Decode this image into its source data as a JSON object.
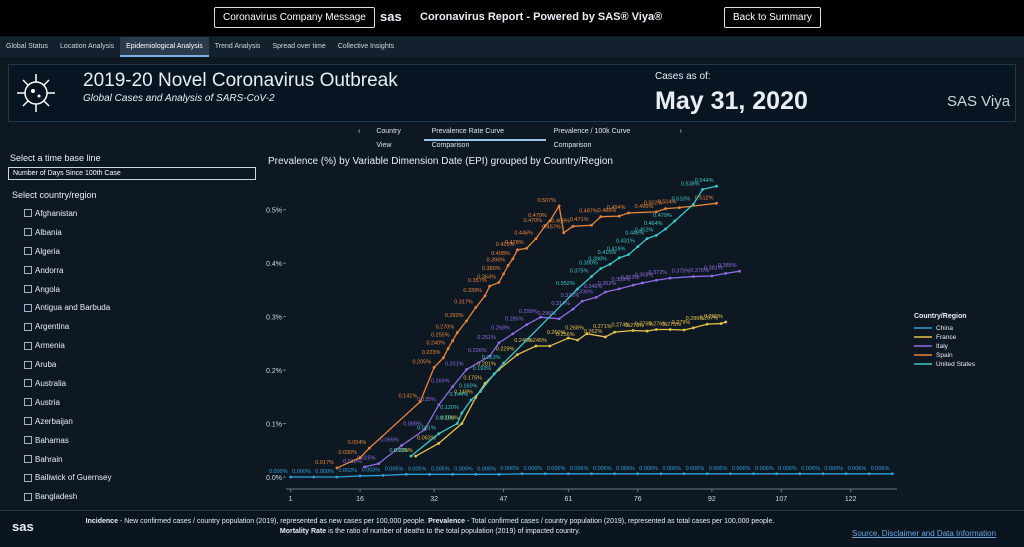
{
  "top_bar": {
    "left_button": "Coronavirus Company Message",
    "logo": "sas",
    "title": "Coronavirus Report - Powered by SAS® Viya®",
    "right_button": "Back to Summary"
  },
  "tabs": [
    "Global Status",
    "Location Analysis",
    "Epidemiological Analysis",
    "Trend Analysis",
    "Spread over time",
    "Collective Insights"
  ],
  "active_tab": 2,
  "header": {
    "title": "2019-20 Novel Coronavirus Outbreak",
    "subtitle": "Global Cases and Analysis of SARS-CoV-2",
    "cases_label": "Cases as of:",
    "date": "May 31, 2020",
    "brand": "SAS Viya"
  },
  "subtabs": [
    "Country View",
    "Prevalence Rate Curve Comparison",
    "Prevalence / 100k Curve Comparison"
  ],
  "active_subtab": 1,
  "filters": {
    "time_label": "Select a time base line",
    "time_value": "Number of Days Since 100th Case",
    "country_label": "Select country/region",
    "countries": [
      "Afghanistan",
      "Albania",
      "Algeria",
      "Andorra",
      "Angola",
      "Antigua and Barbuda",
      "Argentina",
      "Armenia",
      "Aruba",
      "Australia",
      "Austria",
      "Azerbaijan",
      "Bahamas",
      "Bahrain",
      "Bailiwick of Guernsey",
      "Bangladesh"
    ]
  },
  "chart_data": {
    "type": "line",
    "title": "Prevalence  (%) by Variable Dimension Date (EPI) grouped by Country/Region",
    "legend_title": "Country/Region",
    "legend_position": "right",
    "xlim": [
      0,
      132
    ],
    "xticks": [
      1,
      16,
      32,
      47,
      61,
      76,
      92,
      107,
      122
    ],
    "ylim": [
      0,
      0.55
    ],
    "yticks": [
      {
        "value": 0,
        "label": "0.0%"
      },
      {
        "value": 0.1,
        "label": "0.1%"
      },
      {
        "value": 0.2,
        "label": "0.2%"
      },
      {
        "value": 0.3,
        "label": "0.3%"
      },
      {
        "value": 0.4,
        "label": "0.4%"
      },
      {
        "value": 0.5,
        "label": "0.5%"
      }
    ],
    "series": [
      {
        "name": "China",
        "color": "#2f9fdc",
        "x": [
          1,
          6,
          11,
          16,
          21,
          26,
          31,
          36,
          41,
          46,
          51,
          56,
          61,
          66,
          71,
          76,
          81,
          86,
          91,
          96,
          101,
          106,
          111,
          116,
          121,
          126,
          131
        ],
        "values": [
          0,
          0,
          0,
          0.002,
          0.003,
          0.005,
          0.005,
          0.005,
          0.005,
          0.005,
          0.006,
          0.006,
          0.006,
          0.006,
          0.006,
          0.006,
          0.006,
          0.006,
          0.006,
          0.006,
          0.006,
          0.006,
          0.006,
          0.006,
          0.006,
          0.006,
          0.006
        ],
        "value_labels": [
          "0.000%",
          "0.000%",
          "0.000%",
          "0.002%",
          "0.003%",
          "0.005%",
          "0.005%",
          "0.005%",
          "0.005%",
          "0.005%",
          "0.006%",
          "0.006%",
          "0.006%",
          "0.006%",
          "0.006%",
          "0.006%",
          "0.006%",
          "0.006%",
          "0.006%",
          "0.006%",
          "0.006%",
          "0.006%",
          "0.006%",
          "0.006%",
          "0.006%",
          "0.006%",
          "0.006%"
        ]
      },
      {
        "name": "France",
        "color": "#e6c24a",
        "x": [
          28,
          33,
          38,
          41,
          43,
          46,
          50,
          54,
          57,
          61,
          63,
          65,
          69,
          71,
          75,
          78,
          80,
          83,
          86,
          88,
          91,
          94,
          95
        ],
        "values": [
          0.039,
          0.063,
          0.1,
          0.149,
          0.175,
          0.201,
          0.229,
          0.245,
          0.245,
          0.26,
          0.256,
          0.268,
          0.262,
          0.271,
          0.274,
          0.273,
          0.276,
          0.276,
          0.275,
          0.279,
          0.286,
          0.287,
          0.29
        ],
        "value_labels": [
          "0.039%",
          "0.063%",
          "0.100%",
          "0.149%",
          "0.175%",
          "0.201%",
          "0.229%",
          "0.245%",
          "0.245%",
          "0.260%",
          "0.256%",
          "0.268%",
          "0.262%",
          "0.271%",
          "0.274%",
          "0.273%",
          "0.276%",
          "0.276%",
          "0.275%",
          "0.279%",
          "0.286%",
          "0.287%",
          "0.290%"
        ]
      },
      {
        "name": "Italy",
        "color": "#8f6ce2",
        "x": [
          17,
          20,
          25,
          30,
          33,
          36,
          39,
          44,
          46,
          49,
          52,
          55,
          59,
          62,
          64,
          67,
          69,
          72,
          75,
          77,
          80,
          83,
          88,
          92,
          95,
          98
        ],
        "values": [
          0.019,
          0.025,
          0.059,
          0.089,
          0.135,
          0.169,
          0.201,
          0.226,
          0.251,
          0.268,
          0.285,
          0.299,
          0.296,
          0.314,
          0.329,
          0.336,
          0.346,
          0.352,
          0.359,
          0.363,
          0.368,
          0.372,
          0.375,
          0.376,
          0.381,
          0.385
        ],
        "value_labels": [
          "0.019%",
          "0.025%",
          "0.059%",
          "0.089%",
          "0.135%",
          "0.169%",
          "0.201%",
          "0.226%",
          "0.251%",
          "0.268%",
          "0.285%",
          "0.299%",
          "0.296%",
          "0.314%",
          "0.329%",
          "0.336%",
          "0.346%",
          "0.352%",
          "0.359%",
          "0.363%",
          "0.368%",
          "0.372%",
          "0.375%",
          "0.376%",
          "0.381%",
          "0.385%"
        ]
      },
      {
        "name": "Spain",
        "color": "#e8843a",
        "x": [
          11,
          16,
          18,
          29,
          32,
          34,
          35,
          36,
          37,
          39,
          41,
          43,
          44,
          46,
          47,
          48,
          49,
          50,
          52,
          54,
          56,
          57,
          59,
          60,
          62,
          66,
          68,
          72,
          74,
          80,
          82,
          85,
          93
        ],
        "values": [
          0.017,
          0.036,
          0.054,
          0.141,
          0.205,
          0.223,
          0.24,
          0.255,
          0.27,
          0.292,
          0.317,
          0.339,
          0.357,
          0.364,
          0.38,
          0.396,
          0.408,
          0.425,
          0.428,
          0.446,
          0.47,
          0.479,
          0.507,
          0.457,
          0.469,
          0.471,
          0.487,
          0.488,
          0.494,
          0.496,
          0.502,
          0.504,
          0.512
        ],
        "value_labels": [
          "0.017%",
          "0.036%",
          "0.054%",
          "0.141%",
          "0.205%",
          "0.223%",
          "0.240%",
          "0.255%",
          "0.270%",
          "0.292%",
          "0.317%",
          "0.339%",
          "0.357%",
          "0.364%",
          "0.380%",
          "0.396%",
          "0.408%",
          "0.425%",
          "0.428%",
          "0.446%",
          "0.470%",
          "0.479%",
          "0.507%",
          "0.457%",
          "0.469%",
          "0.471%",
          "0.487%",
          "0.488%",
          "0.494%",
          "0.496%",
          "0.502%",
          "0.504%",
          "0.512%"
        ]
      },
      {
        "name": "United States",
        "color": "#3cc8c8",
        "x": [
          27,
          33,
          37,
          38,
          40,
          42,
          45,
          47,
          63,
          66,
          68,
          70,
          72,
          74,
          76,
          78,
          80,
          82,
          84,
          88,
          90,
          93
        ],
        "values": [
          0.039,
          0.081,
          0.1,
          0.12,
          0.144,
          0.16,
          0.193,
          0.213,
          0.352,
          0.375,
          0.39,
          0.398,
          0.41,
          0.416,
          0.431,
          0.446,
          0.452,
          0.464,
          0.479,
          0.51,
          0.538,
          0.544
        ],
        "value_labels": [
          "0.039%",
          "0.081%",
          "0.100%",
          "0.120%",
          "0.144%",
          "0.160%",
          "0.193%",
          "0.213%",
          "0.352%",
          "0.375%",
          "0.390%",
          "0.398%",
          "0.410%",
          "0.416%",
          "0.431%",
          "0.446%",
          "0.452%",
          "0.464%",
          "0.479%",
          "0.510%",
          "0.538%",
          "0.544%"
        ]
      }
    ]
  },
  "footer": {
    "logo": "sas",
    "definitions": [
      {
        "term": "Incidence",
        "text": " - New confirmed cases / country population (2019), represented as new cases per 100,000 people. "
      },
      {
        "term": "Prevalence",
        "text": " - Total confirmed cases / country population (2019), represented as total cases per 100,000 people. "
      },
      {
        "term": "Mortality Rate",
        "text": " is the ratio of number of deaths to the total population (2019) of impacted country."
      }
    ],
    "link": "Source, Disclaimer and Data Information"
  }
}
